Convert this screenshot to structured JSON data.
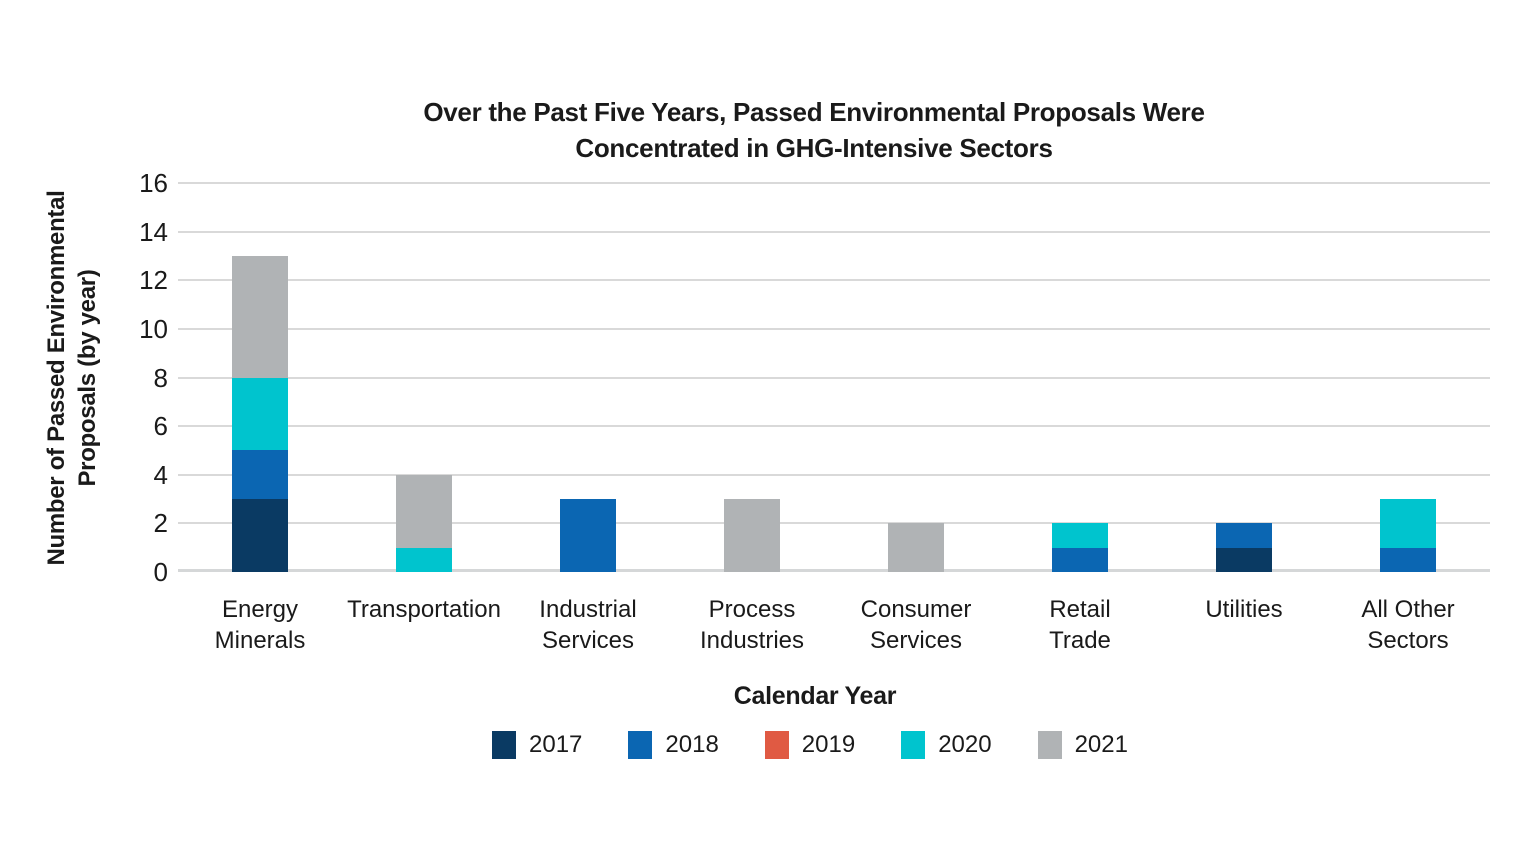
{
  "chart_data": {
    "type": "bar",
    "stacked": true,
    "title": "Over the Past Five Years, Passed Environmental Proposals Were Concentrated in GHG-Intensive Sectors",
    "title_lines": [
      "Over the Past Five Years, Passed Environmental Proposals Were",
      "Concentrated in GHG-Intensive Sectors"
    ],
    "xlabel": "Calendar Year",
    "ylabel": "Number of Passed Environmental Proposals (by year)",
    "ylabel_lines": [
      "Number of Passed Environmental",
      "Proposals (by year)"
    ],
    "ylim": [
      0,
      16
    ],
    "yticks": [
      0,
      2,
      4,
      6,
      8,
      10,
      12,
      14,
      16
    ],
    "grid": "horizontal",
    "legend_position": "bottom",
    "categories": [
      "Energy Minerals",
      "Transportation",
      "Industrial Services",
      "Process Industries",
      "Consumer Services",
      "Retail Trade",
      "Utilities",
      "All Other Sectors"
    ],
    "category_label_lines": [
      [
        "Energy",
        "Minerals"
      ],
      [
        "Transportation"
      ],
      [
        "Industrial",
        "Services"
      ],
      [
        "Process",
        "Industries"
      ],
      [
        "Consumer",
        "Services"
      ],
      [
        "Retail",
        "Trade"
      ],
      [
        "Utilities"
      ],
      [
        "All Other",
        "Sectors"
      ]
    ],
    "series": [
      {
        "name": "2017",
        "color": "#0a3a63",
        "values": [
          3,
          0,
          0,
          0,
          0,
          0,
          1,
          0
        ]
      },
      {
        "name": "2018",
        "color": "#0b66b2",
        "values": [
          2,
          0,
          3,
          0,
          0,
          1,
          1,
          1
        ]
      },
      {
        "name": "2019",
        "color": "#e05a43",
        "values": [
          0,
          0,
          0,
          0,
          0,
          0,
          0,
          0
        ]
      },
      {
        "name": "2020",
        "color": "#00c4ce",
        "values": [
          3,
          1,
          0,
          0,
          0,
          1,
          0,
          2
        ]
      },
      {
        "name": "2021",
        "color": "#b0b3b5",
        "values": [
          5,
          3,
          0,
          3,
          2,
          0,
          0,
          0
        ]
      }
    ],
    "colors": {
      "gridline": "#d9d9d9",
      "axis_line": "#d5d7d8",
      "text": "#1a1a1a"
    }
  }
}
